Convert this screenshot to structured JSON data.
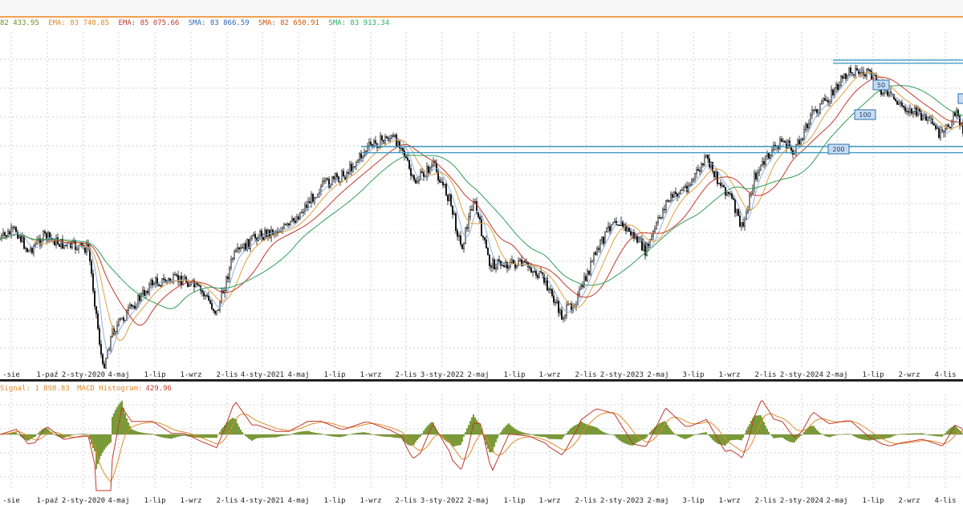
{
  "legend": {
    "items": [
      {
        "text": "82 433.95",
        "color": "#6b8e23"
      },
      {
        "text": "EMA: 83 748.85",
        "color": "#e08a2c"
      },
      {
        "text": "EMA: 85 075.66",
        "color": "#c0392b"
      },
      {
        "text": "SMA: 83 866.59",
        "color": "#2b67b3"
      },
      {
        "text": "SMA: 82 650.91",
        "color": "#d35400"
      },
      {
        "text": "SMA: 83 913.34",
        "color": "#27ae60"
      }
    ]
  },
  "macd_legend": {
    "signal_label": "Signal: 1 898.83",
    "hist_label": "MACD Histogram:",
    "hist_value": "429.96"
  },
  "colors": {
    "candle": "#111111",
    "resistance": "#2e93c0",
    "ema_fast": "#8fb0e0",
    "ema_mid": "#e0a040",
    "ema_slow": "#c0392b",
    "sma_long": "#2e9e5a",
    "macd_line": "#c0392b",
    "signal_line": "#e08a2c",
    "histogram": "#6b8e23",
    "grid": "#cfcfcf"
  },
  "chart_data": [
    {
      "type": "line",
      "subtype": "candlestick with moving averages",
      "x_ticks": [
        "-sie",
        "1-paź",
        "2-sty-2020",
        "4-maj",
        "1-lip",
        "1-wrz",
        "2-lis",
        "4-sty-2021",
        "4-maj",
        "1-lip",
        "1-wrz",
        "2-lis",
        "3-sty-2022",
        "2-maj",
        "1-lip",
        "1-wrz",
        "2-lis",
        "2-sty-2023",
        "2-maj",
        "3-lip",
        "1-wrz",
        "2-lis",
        "2-sty-2024",
        "2-maj",
        "1-lip",
        "2-wrz",
        "4-lis"
      ],
      "price_anchors": [
        [
          0,
          0.58
        ],
        [
          20,
          0.55
        ],
        [
          35,
          0.62
        ],
        [
          55,
          0.57
        ],
        [
          80,
          0.6
        ],
        [
          110,
          0.61
        ],
        [
          118,
          0.78
        ],
        [
          128,
          1.0
        ],
        [
          140,
          0.88
        ],
        [
          165,
          0.8
        ],
        [
          190,
          0.72
        ],
        [
          230,
          0.71
        ],
        [
          255,
          0.76
        ],
        [
          270,
          0.82
        ],
        [
          290,
          0.64
        ],
        [
          320,
          0.57
        ],
        [
          360,
          0.54
        ],
        [
          400,
          0.41
        ],
        [
          430,
          0.37
        ],
        [
          460,
          0.28
        ],
        [
          485,
          0.25
        ],
        [
          500,
          0.27
        ],
        [
          515,
          0.4
        ],
        [
          540,
          0.34
        ],
        [
          560,
          0.45
        ],
        [
          575,
          0.61
        ],
        [
          590,
          0.45
        ],
        [
          610,
          0.66
        ],
        [
          640,
          0.66
        ],
        [
          660,
          0.67
        ],
        [
          680,
          0.72
        ],
        [
          700,
          0.83
        ],
        [
          720,
          0.77
        ],
        [
          740,
          0.64
        ],
        [
          765,
          0.51
        ],
        [
          790,
          0.57
        ],
        [
          805,
          0.62
        ],
        [
          830,
          0.46
        ],
        [
          860,
          0.4
        ],
        [
          880,
          0.32
        ],
        [
          895,
          0.39
        ],
        [
          910,
          0.44
        ],
        [
          925,
          0.55
        ],
        [
          940,
          0.38
        ],
        [
          960,
          0.3
        ],
        [
          975,
          0.26
        ],
        [
          990,
          0.3
        ],
        [
          1010,
          0.18
        ],
        [
          1030,
          0.13
        ],
        [
          1060,
          0.03
        ],
        [
          1085,
          0.05
        ],
        [
          1100,
          0.1
        ],
        [
          1125,
          0.15
        ],
        [
          1150,
          0.18
        ],
        [
          1175,
          0.25
        ],
        [
          1190,
          0.17
        ],
        [
          1200,
          0.22
        ]
      ],
      "resistance_lines": [
        {
          "x_from": 450,
          "level": 0.28
        },
        {
          "x_from": 450,
          "level": 0.3
        },
        {
          "x_from": 1038,
          "level": 0.0
        },
        {
          "x_from": 1038,
          "level": 0.01
        }
      ],
      "moving_averages": [
        {
          "name": "EMA",
          "window": 6,
          "color_key": "ema_fast"
        },
        {
          "name": "EMA",
          "window": 14,
          "color_key": "ema_mid"
        },
        {
          "name": "EMA",
          "window": 28,
          "color_key": "ema_slow"
        },
        {
          "name": "SMA",
          "window": 48,
          "color_key": "sma_long"
        }
      ],
      "markers": [
        {
          "label": "50"
        },
        {
          "label": "100"
        },
        {
          "label": "200"
        }
      ]
    },
    {
      "type": "bar",
      "subtype": "MACD histogram with signal lines",
      "x_ticks": [
        "-sie",
        "1-paź",
        "2-sty-2020",
        "4-maj",
        "1-lip",
        "1-wrz",
        "2-lis",
        "4-sty-2021",
        "4-maj",
        "1-lip",
        "1-wrz",
        "2-lis",
        "3-sty-2022",
        "2-maj",
        "1-lip",
        "1-wrz",
        "2-lis",
        "2-sty-2023",
        "2-maj",
        "3-lip",
        "1-wrz",
        "2-lis",
        "2-sty-2024",
        "2-maj",
        "1-lip",
        "2-wrz",
        "4-lis"
      ]
    }
  ]
}
